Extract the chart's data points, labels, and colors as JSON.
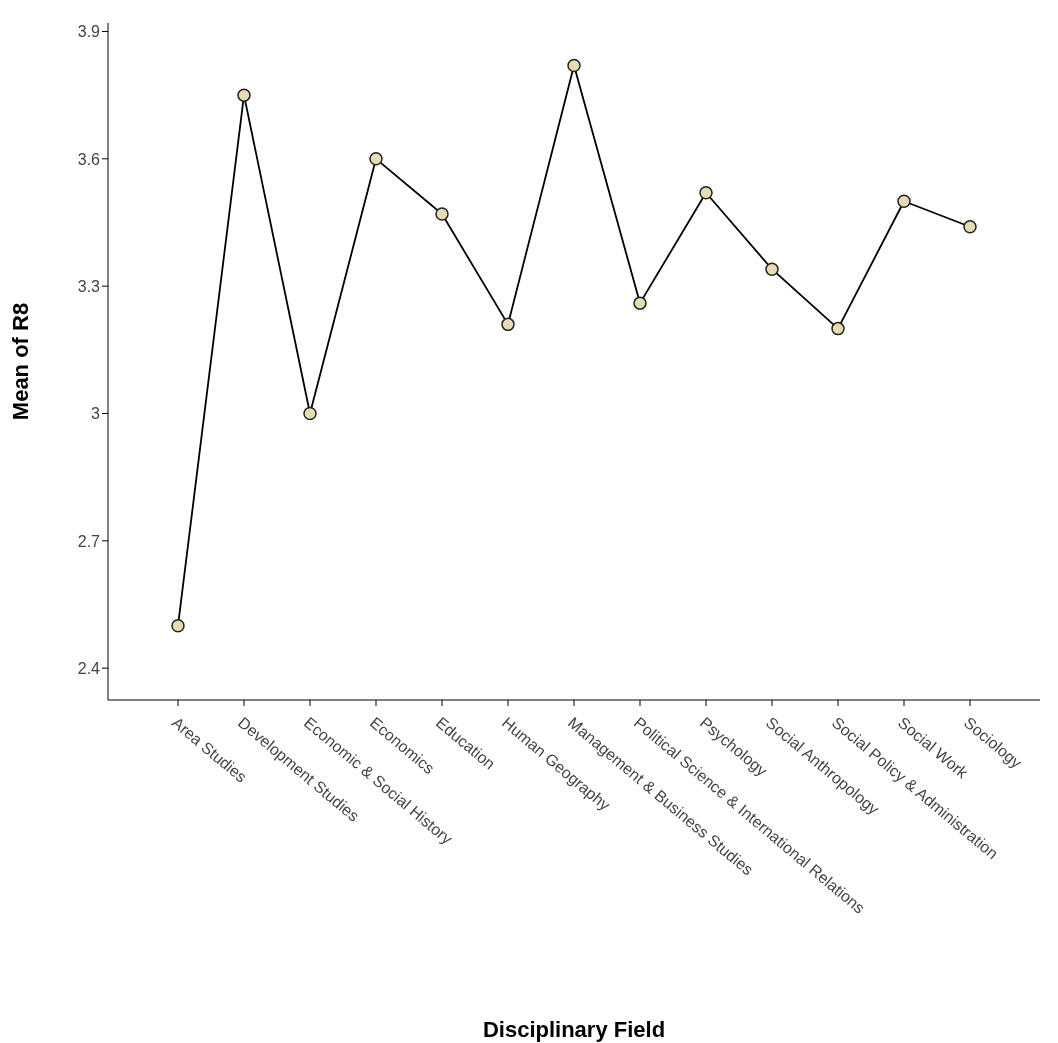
{
  "chart_data": {
    "type": "line",
    "xlabel": "Disciplinary Field",
    "ylabel": "Mean of R8",
    "categories": [
      "Area Studies",
      "Development Studies",
      "Economic & Social History",
      "Economics",
      "Education",
      "Human Geography",
      "Management & Business Studies",
      "Political Science & International Relations",
      "Psychology",
      "Social Anthropology",
      "Social Policy & Administration",
      "Social Work",
      "Sociology"
    ],
    "series": [
      {
        "color": "#000000",
        "values": [
          2.5,
          3.75,
          3.0,
          3.6,
          3.47,
          3.21,
          3.82,
          3.26,
          3.52,
          3.34,
          3.2,
          3.5,
          3.44
        ]
      }
    ],
    "ylim": [
      2.325,
      3.92
    ],
    "yticks": [
      2.4,
      2.7,
      3,
      3.3,
      3.6,
      3.9
    ],
    "marker": "circle",
    "line_style": "solid",
    "grid": false,
    "legend": false
  }
}
